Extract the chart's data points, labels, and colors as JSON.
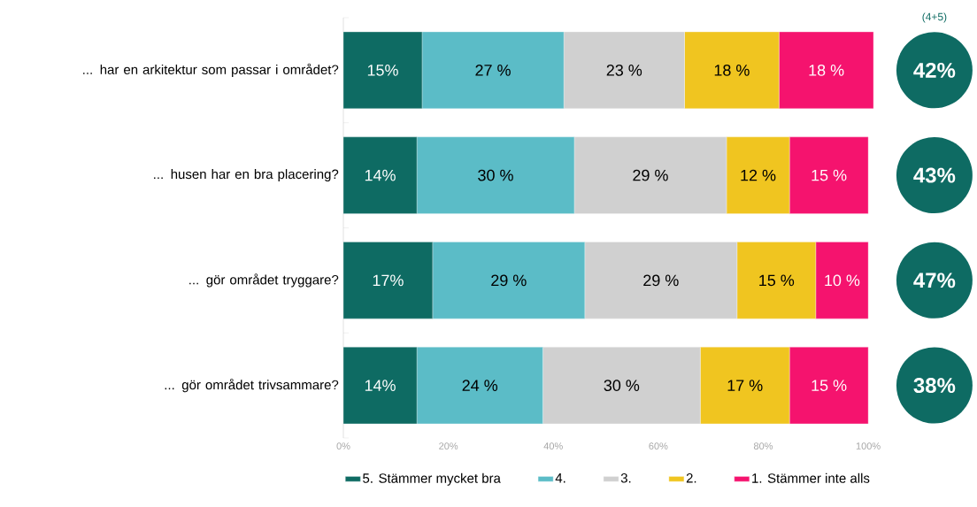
{
  "chart_data": {
    "type": "bar",
    "orientation": "horizontal",
    "stacked": true,
    "categories": [
      "... har en arkitektur som passar i området?",
      "... husen har en bra placering?",
      "... gör området tryggare?",
      "... gör området trivsammare?"
    ],
    "series": [
      {
        "name": "5. Stämmer mycket bra",
        "color": "#0e6b63",
        "values": [
          15,
          14,
          17,
          14
        ],
        "value_labels": [
          "15%",
          "14%",
          "17%",
          "14%"
        ]
      },
      {
        "name": "4.",
        "color": "#5bbcc7",
        "values": [
          27,
          30,
          29,
          24
        ],
        "value_labels": [
          "27 %",
          "30 %",
          "29 %",
          "24 %"
        ]
      },
      {
        "name": "3.",
        "color": "#d0d0d0",
        "values": [
          23,
          29,
          29,
          30
        ],
        "value_labels": [
          "23 %",
          "29 %",
          "29 %",
          "30 %"
        ]
      },
      {
        "name": "2.",
        "color": "#f0c520",
        "values": [
          18,
          12,
          15,
          17
        ],
        "value_labels": [
          "18 %",
          "12 %",
          "15 %",
          "17 %"
        ]
      },
      {
        "name": "1. Stämmer inte alls",
        "color": "#f5136e",
        "values": [
          18,
          15,
          10,
          15
        ],
        "value_labels": [
          "18 %",
          "15 %",
          "10 %",
          "15 %"
        ]
      }
    ],
    "xlim": [
      0,
      101
    ],
    "xticks": [
      {
        "value": 0,
        "label": "0%"
      },
      {
        "value": 20,
        "label": "20%"
      },
      {
        "value": 40,
        "label": "40%"
      },
      {
        "value": 60,
        "label": "60%"
      },
      {
        "value": 80,
        "label": "80%"
      },
      {
        "value": 100,
        "label": "100%"
      }
    ],
    "annotations": [
      "(4+5)",
      "42%",
      "43%",
      "47%",
      "38%"
    ],
    "legend": "bottom",
    "grid": false
  }
}
